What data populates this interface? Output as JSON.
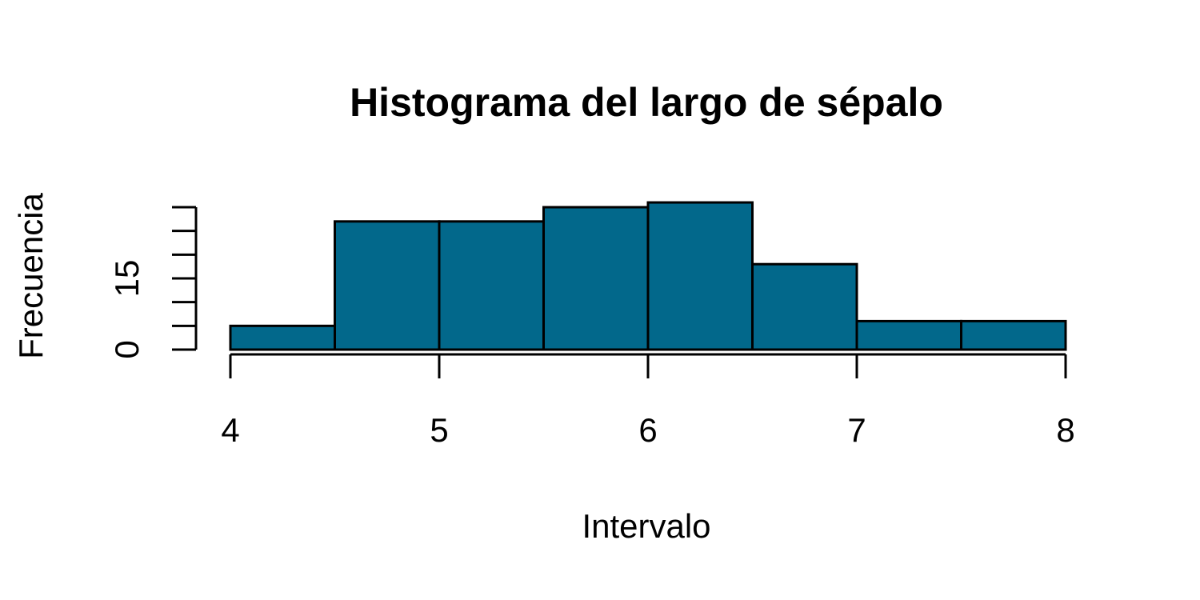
{
  "chart_data": {
    "type": "bar",
    "title": "Histograma del largo de sépalo",
    "xlabel": "Intervalo",
    "ylabel": "Frecuencia",
    "bins": [
      {
        "from": 4.0,
        "to": 4.5,
        "value": 5
      },
      {
        "from": 4.5,
        "to": 5.0,
        "value": 27
      },
      {
        "from": 5.0,
        "to": 5.5,
        "value": 27
      },
      {
        "from": 5.5,
        "to": 6.0,
        "value": 30
      },
      {
        "from": 6.0,
        "to": 6.5,
        "value": 31
      },
      {
        "from": 6.5,
        "to": 7.0,
        "value": 18
      },
      {
        "from": 7.0,
        "to": 7.5,
        "value": 6
      },
      {
        "from": 7.5,
        "to": 8.0,
        "value": 6
      }
    ],
    "xlim": [
      4,
      8
    ],
    "ylim": [
      0,
      30
    ],
    "x_ticks": [
      4,
      5,
      6,
      7,
      8
    ],
    "x_tick_labels": [
      "4",
      "5",
      "6",
      "7",
      "8"
    ],
    "y_ticks": [
      0,
      5,
      10,
      15,
      20,
      25,
      30
    ],
    "y_tick_labels": [
      "0",
      "",
      "",
      "15",
      "",
      "",
      ""
    ],
    "grid": false,
    "legend": "none",
    "bar_color": "#02688b",
    "edge_color": "#000000"
  }
}
